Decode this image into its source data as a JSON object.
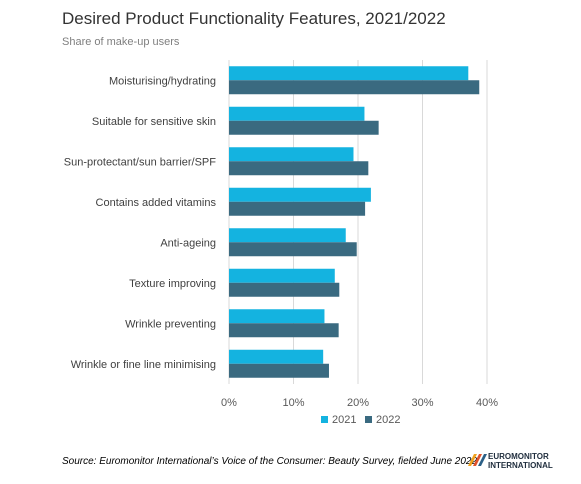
{
  "title": "Desired Product Functionality Features, 2021/2022",
  "subtitle": "Share of make-up users",
  "source": "Source: Euromonitor International’s Voice of the Consumer: Beauty Survey, fielded June 2022",
  "logo_text": "EUROMONITOR INTERNATIONAL",
  "colors": {
    "2021": "#14b3e0",
    "2022": "#3a6a80",
    "grid": "#d9d9d9",
    "axis_text": "#595959"
  },
  "chart_data": {
    "type": "bar",
    "orientation": "horizontal",
    "categories": [
      "Moisturising/hydrating",
      "Suitable for sensitive skin",
      "Sun-protectant/sun barrier/SPF",
      "Contains added vitamins",
      "Anti-ageing",
      "Texture improving",
      "Wrinkle preventing",
      "Wrinkle or fine line minimising"
    ],
    "series": [
      {
        "name": "2021",
        "values": [
          37.1,
          21.0,
          19.3,
          22.0,
          18.1,
          16.4,
          14.8,
          14.6
        ]
      },
      {
        "name": "2022",
        "values": [
          38.8,
          23.2,
          21.6,
          21.1,
          19.8,
          17.1,
          17.0,
          15.5
        ]
      }
    ],
    "xlim": [
      0,
      40
    ],
    "xticks": [
      0,
      10,
      20,
      30,
      40
    ],
    "tick_format": "percent",
    "grid": true,
    "legend": "bottom"
  }
}
